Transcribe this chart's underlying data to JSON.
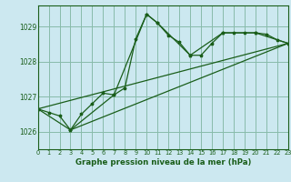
{
  "background_color": "#cce8f0",
  "plot_bg_color": "#cce8f0",
  "grid_color": "#88bbaa",
  "line_color": "#1a5e1a",
  "title": "Graphe pression niveau de la mer (hPa)",
  "xlim": [
    0,
    23
  ],
  "ylim": [
    1025.5,
    1029.6
  ],
  "yticks": [
    1026,
    1027,
    1028,
    1029
  ],
  "xticks": [
    0,
    1,
    2,
    3,
    4,
    5,
    6,
    7,
    8,
    9,
    10,
    11,
    12,
    13,
    14,
    15,
    16,
    17,
    18,
    19,
    20,
    21,
    22,
    23
  ],
  "series1_x": [
    0,
    1,
    2,
    3,
    4,
    5,
    6,
    7,
    8,
    9,
    10,
    11,
    12,
    13,
    14,
    15,
    16,
    17,
    18,
    19,
    20,
    21,
    22,
    23
  ],
  "series1_y": [
    1026.65,
    1026.55,
    1026.45,
    1026.05,
    1026.5,
    1026.8,
    1027.1,
    1027.05,
    1027.25,
    1028.65,
    1029.35,
    1029.1,
    1028.75,
    1028.55,
    1028.18,
    1028.18,
    1028.52,
    1028.82,
    1028.82,
    1028.82,
    1028.82,
    1028.78,
    1028.62,
    1028.52
  ],
  "series2_x": [
    0,
    3,
    7,
    10,
    11,
    14,
    17,
    20,
    23
  ],
  "series2_y": [
    1026.65,
    1026.05,
    1027.05,
    1029.35,
    1029.1,
    1028.18,
    1028.82,
    1028.82,
    1028.52
  ],
  "series3_x": [
    0,
    23
  ],
  "series3_y": [
    1026.65,
    1028.52
  ],
  "series4_x": [
    3,
    23
  ],
  "series4_y": [
    1026.05,
    1028.52
  ]
}
